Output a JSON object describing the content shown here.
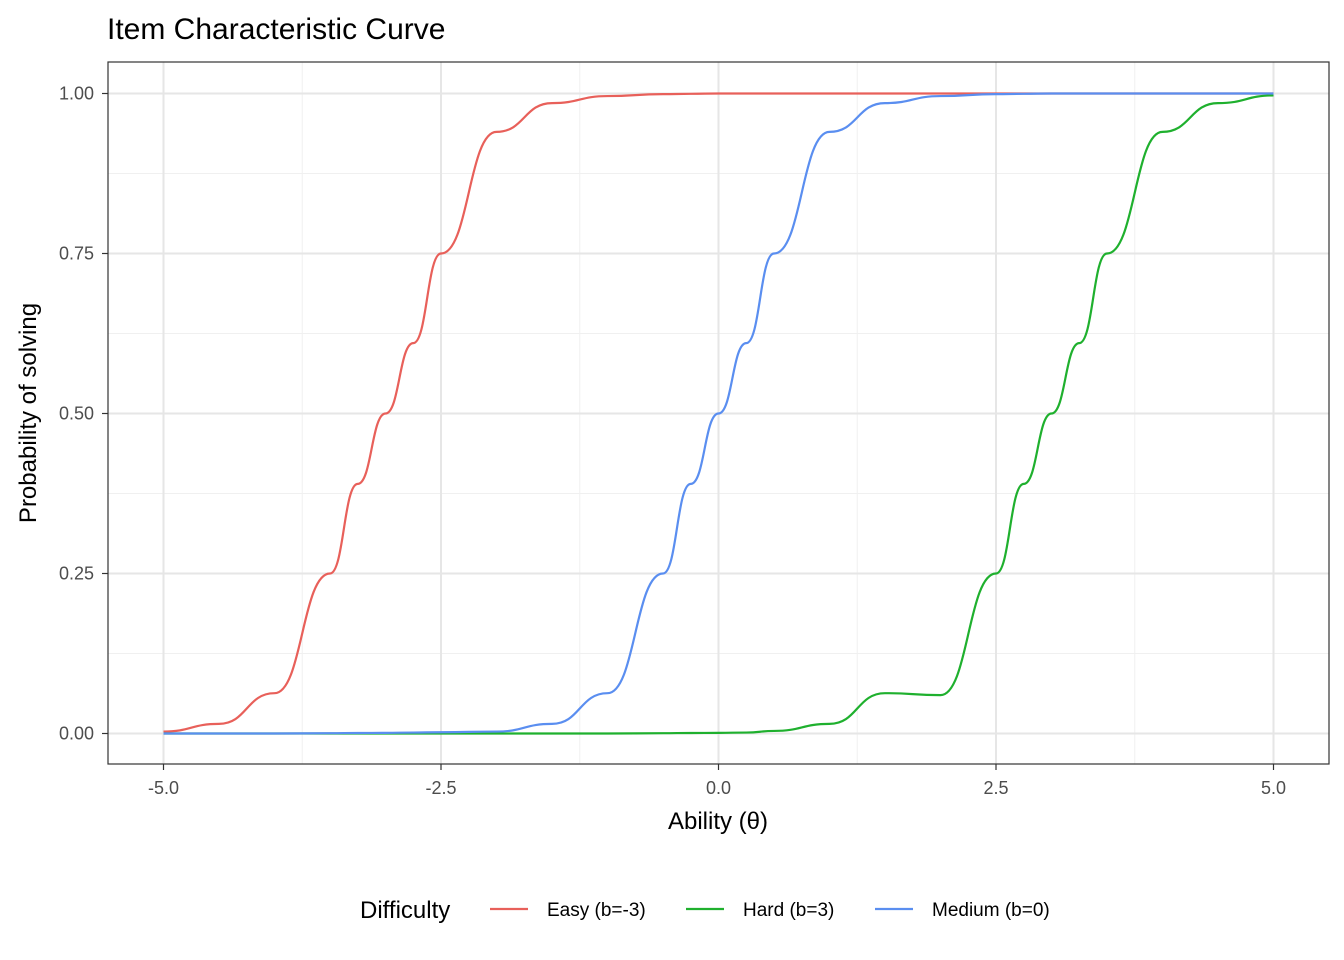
{
  "chart_data": {
    "type": "line",
    "title": "Item Characteristic Curve",
    "xlabel": "Ability (θ)",
    "ylabel": "Probability of solving",
    "xlim": [
      -5,
      5
    ],
    "ylim": [
      0,
      1
    ],
    "x_ticks": [
      -5.0,
      -2.5,
      0.0,
      2.5,
      5.0
    ],
    "x_tick_labels": [
      "-5.0",
      "-2.5",
      "0.0",
      "2.5",
      "5.0"
    ],
    "y_ticks": [
      0,
      0.25,
      0.5,
      0.75,
      1.0
    ],
    "y_tick_labels": [
      "0.00",
      "0.25",
      "0.50",
      "0.75",
      "1.00"
    ],
    "grid": true,
    "legend": {
      "title": "Difficulty",
      "position": "bottom"
    },
    "x": [
      -5.0,
      -4.5,
      -4.0,
      -3.5,
      -3.25,
      -3.0,
      -2.75,
      -2.5,
      -2.0,
      -1.5,
      -1.0,
      -0.5,
      -0.25,
      0.0,
      0.25,
      0.5,
      1.0,
      1.5,
      2.0,
      2.5,
      2.75,
      3.0,
      3.25,
      3.5,
      4.0,
      4.5,
      5.0
    ],
    "series": [
      {
        "name": "Easy (b=-3)",
        "color": "#e8605a",
        "values": [
          0.003,
          0.015,
          0.063,
          0.25,
          0.39,
          0.5,
          0.61,
          0.75,
          0.94,
          0.985,
          0.996,
          0.999,
          0.9995,
          1.0,
          1.0,
          1.0,
          1.0,
          1.0,
          1.0,
          1.0,
          1.0,
          1.0,
          1.0,
          1.0,
          1.0,
          1.0,
          1.0
        ]
      },
      {
        "name": "Hard (b=3)",
        "color": "#1fb02e",
        "values": [
          0.0,
          0.0,
          0.0,
          0.0,
          0.0,
          0.0,
          0.0,
          0.0,
          0.0,
          0.0,
          0.0,
          0.0005,
          0.0008,
          0.001,
          0.0015,
          0.004,
          0.015,
          0.063,
          0.06,
          0.25,
          0.39,
          0.5,
          0.61,
          0.75,
          0.94,
          0.985,
          0.997
        ]
      },
      {
        "name": "Medium (b=0)",
        "color": "#5a8ef0",
        "values": [
          0.0,
          0.0,
          0.0,
          0.0005,
          0.0008,
          0.001,
          0.0015,
          0.002,
          0.003,
          0.015,
          0.063,
          0.25,
          0.39,
          0.5,
          0.61,
          0.75,
          0.94,
          0.985,
          0.996,
          0.999,
          0.9995,
          1.0,
          1.0,
          1.0,
          1.0,
          1.0,
          1.0
        ]
      }
    ]
  }
}
